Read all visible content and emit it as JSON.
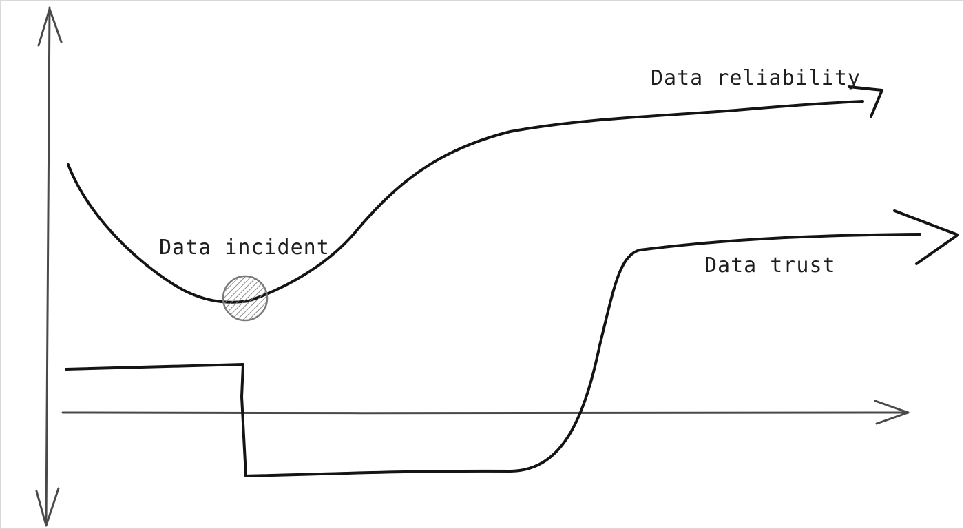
{
  "labels": {
    "reliability": "Data reliability",
    "incident": "Data incident",
    "trust": "Data trust"
  },
  "colors": {
    "ink": "#141414",
    "axis": "#4a4a4a",
    "marker_fill": "#c8c8c8",
    "marker_stroke": "#7a7a7a"
  }
}
